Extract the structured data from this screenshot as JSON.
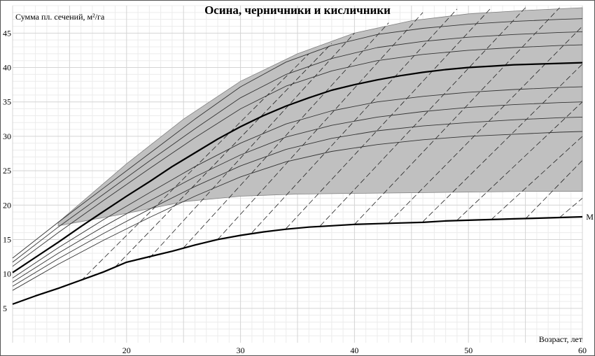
{
  "chart_data": {
    "type": "line",
    "title": "Осина, черничники и кисличники",
    "xlabel": "Возраст, лет",
    "ylabel": "Сумма пл. сечений, м²/га",
    "xlim": [
      10,
      60
    ],
    "ylim": [
      0,
      49
    ],
    "x_ticks": [
      20,
      30,
      40,
      50,
      60
    ],
    "y_ticks": [
      5,
      10,
      15,
      20,
      25,
      30,
      35,
      40,
      45
    ],
    "grid": true,
    "band": {
      "name": "shaded-region",
      "x": [
        14,
        20,
        25,
        30,
        35,
        40,
        45,
        50,
        55,
        60
      ],
      "upper": [
        17.5,
        26.0,
        32.5,
        38.0,
        42.0,
        45.0,
        46.8,
        47.8,
        48.3,
        48.7
      ],
      "lower": [
        17.0,
        18.8,
        20.5,
        21.3,
        21.6,
        21.7,
        21.8,
        21.9,
        22.0,
        22.0
      ]
    },
    "series": [
      {
        "name": "",
        "style": "bold",
        "x": [
          10,
          12,
          14,
          16,
          18,
          20,
          22,
          24,
          26,
          28,
          30,
          32,
          34,
          36,
          38,
          40,
          42,
          44,
          46,
          48,
          50,
          52,
          54,
          56,
          58,
          60
        ],
        "values": [
          5.6,
          6.8,
          7.9,
          9.1,
          10.3,
          11.7,
          12.5,
          13.3,
          14.2,
          15.0,
          15.6,
          16.1,
          16.5,
          16.8,
          17.0,
          17.2,
          17.3,
          17.4,
          17.5,
          17.7,
          17.8,
          17.9,
          18.0,
          18.1,
          18.2,
          18.3
        ]
      },
      {
        "name": "",
        "style": "bold",
        "x": [
          10,
          12,
          14,
          16,
          18,
          20,
          22,
          24,
          26,
          28,
          30,
          32,
          34,
          36,
          38,
          40,
          42,
          44,
          46,
          48,
          50,
          52,
          54,
          56,
          58,
          60
        ],
        "values": [
          10.2,
          12.4,
          14.6,
          16.9,
          19.1,
          21.3,
          23.4,
          25.6,
          27.6,
          29.6,
          31.4,
          33.0,
          34.4,
          35.6,
          36.7,
          37.5,
          38.2,
          38.8,
          39.3,
          39.7,
          40.0,
          40.2,
          40.4,
          40.5,
          40.6,
          40.7
        ]
      },
      {
        "name": "",
        "style": "thin",
        "x": [
          10,
          14,
          18,
          22,
          26,
          30,
          34,
          38,
          42,
          46,
          50,
          54,
          58,
          60
        ],
        "values": [
          12.3,
          17.5,
          22.5,
          27.5,
          32.5,
          37.2,
          40.8,
          43.2,
          44.8,
          45.7,
          46.3,
          46.7,
          47.0,
          47.1
        ]
      },
      {
        "name": "",
        "style": "thin",
        "x": [
          10,
          14,
          18,
          22,
          26,
          30,
          34,
          38,
          42,
          46,
          50,
          54,
          58,
          60
        ],
        "values": [
          11.7,
          16.8,
          21.6,
          26.4,
          31.1,
          35.6,
          39.0,
          41.3,
          42.9,
          43.8,
          44.4,
          44.8,
          45.1,
          45.2
        ]
      },
      {
        "name": "",
        "style": "thin",
        "x": [
          10,
          14,
          18,
          22,
          26,
          30,
          34,
          38,
          42,
          46,
          50,
          54,
          58,
          60
        ],
        "values": [
          11.1,
          16.0,
          20.7,
          25.3,
          29.8,
          34.0,
          37.3,
          39.5,
          41.0,
          41.9,
          42.5,
          42.9,
          43.2,
          43.3
        ]
      },
      {
        "name": "",
        "style": "thin",
        "x": [
          10,
          14,
          18,
          22,
          26,
          30,
          34,
          38,
          42,
          46,
          50,
          54,
          58,
          60
        ],
        "values": [
          9.4,
          13.8,
          17.9,
          21.8,
          25.6,
          29.0,
          31.8,
          33.7,
          35.0,
          35.8,
          36.4,
          36.8,
          37.1,
          37.2
        ]
      },
      {
        "name": "",
        "style": "thin",
        "x": [
          10,
          14,
          18,
          22,
          26,
          30,
          34,
          38,
          42,
          46,
          50,
          54,
          58,
          60
        ],
        "values": [
          8.8,
          13.0,
          16.9,
          20.6,
          24.1,
          27.3,
          29.9,
          31.6,
          32.8,
          33.6,
          34.2,
          34.6,
          34.9,
          35.0
        ]
      },
      {
        "name": "",
        "style": "thin",
        "x": [
          10,
          14,
          18,
          22,
          26,
          30,
          34,
          38,
          42,
          46,
          50,
          54,
          58,
          60
        ],
        "values": [
          8.2,
          12.2,
          15.9,
          19.4,
          22.7,
          25.7,
          28.1,
          29.7,
          30.8,
          31.5,
          32.0,
          32.4,
          32.7,
          32.8
        ]
      },
      {
        "name": "",
        "style": "thin",
        "x": [
          10,
          14,
          18,
          22,
          26,
          30,
          34,
          38,
          42,
          46,
          50,
          54,
          58,
          60
        ],
        "values": [
          7.6,
          11.4,
          14.9,
          18.2,
          21.3,
          24.1,
          26.3,
          27.8,
          28.8,
          29.5,
          30.0,
          30.3,
          30.6,
          30.7
        ]
      }
    ],
    "dashed_lines": [
      {
        "x": [
          16,
          36
        ],
        "values": [
          9.0,
          42.0
        ]
      },
      {
        "x": [
          19,
          38
        ],
        "values": [
          11.0,
          43.5
        ]
      },
      {
        "x": [
          22,
          40
        ],
        "values": [
          12.3,
          45.0
        ]
      },
      {
        "x": [
          25,
          43
        ],
        "values": [
          13.8,
          46.5
        ]
      },
      {
        "x": [
          28,
          46
        ],
        "values": [
          15.0,
          48.0
        ]
      },
      {
        "x": [
          31,
          49
        ],
        "values": [
          16.0,
          48.5
        ]
      },
      {
        "x": [
          34,
          52
        ],
        "values": [
          16.6,
          48.7
        ]
      },
      {
        "x": [
          37,
          55
        ],
        "values": [
          17.0,
          48.7
        ]
      },
      {
        "x": [
          40,
          58
        ],
        "values": [
          17.2,
          48.7
        ]
      },
      {
        "x": [
          43,
          60
        ],
        "values": [
          17.4,
          46.0
        ]
      },
      {
        "x": [
          46,
          60
        ],
        "values": [
          17.6,
          40.5
        ]
      },
      {
        "x": [
          49,
          60
        ],
        "values": [
          17.8,
          35.0
        ]
      },
      {
        "x": [
          52,
          60
        ],
        "values": [
          17.9,
          30.0
        ]
      },
      {
        "x": [
          55,
          60
        ],
        "values": [
          18.0,
          26.5
        ]
      },
      {
        "x": [
          58,
          60
        ],
        "values": [
          18.2,
          21.0
        ]
      }
    ],
    "annotations": [
      {
        "text": "M",
        "x": 60.2,
        "y": 18.3
      }
    ]
  }
}
